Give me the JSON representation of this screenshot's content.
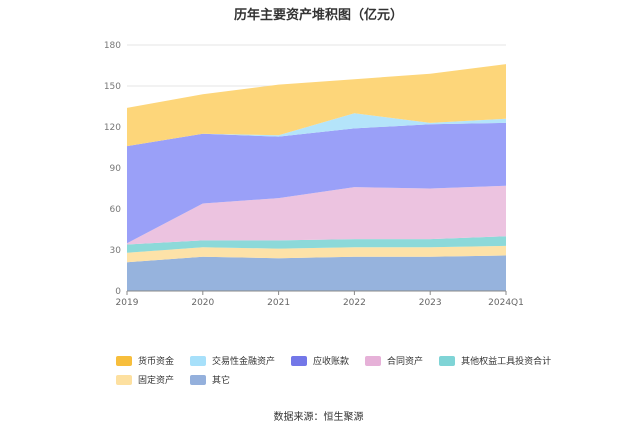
{
  "chart_data": {
    "type": "area",
    "title": "历年主要资产堆积图（亿元）",
    "source": "数据来源：恒生聚源",
    "categories": [
      "2019",
      "2020",
      "2021",
      "2022",
      "2023",
      "2024Q1"
    ],
    "ylim": [
      0,
      180
    ],
    "yticks": [
      "0",
      "30",
      "60",
      "90",
      "120",
      "150",
      "180"
    ],
    "grid": true,
    "legend_position": "bottom",
    "series": [
      {
        "name": "其它",
        "color": "#96b3dd",
        "values": [
          21,
          25,
          24,
          25,
          25,
          26
        ]
      },
      {
        "name": "固定资产",
        "color": "#fde2a8",
        "values": [
          7,
          7,
          7,
          7,
          7,
          7
        ]
      },
      {
        "name": "其他权益工具投资合计",
        "color": "#8cd9d9",
        "values": [
          6,
          5,
          6,
          6,
          6,
          7
        ]
      },
      {
        "name": "合同资产",
        "color": "#ecc3e0",
        "values": [
          1,
          27,
          31,
          38,
          37,
          37
        ]
      },
      {
        "name": "应收账款",
        "color": "#9aa0f8",
        "values": [
          71,
          51,
          45,
          43,
          47,
          46
        ]
      },
      {
        "name": "交易性金融资产",
        "color": "#b4e4fa",
        "values": [
          0,
          0,
          1,
          11,
          1,
          3
        ]
      },
      {
        "name": "货币资金",
        "color": "#fdd67a",
        "values": [
          28,
          29,
          37,
          25,
          36,
          40
        ]
      }
    ]
  },
  "legend": [
    {
      "name": "货币资金",
      "color": "#f7be3c"
    },
    {
      "name": "交易性金融资产",
      "color": "#a7e0fa"
    },
    {
      "name": "应收账款",
      "color": "#7377e8"
    },
    {
      "name": "合同资产",
      "color": "#e6b1d8"
    },
    {
      "name": "其他权益工具投资合计",
      "color": "#7fd4d6"
    },
    {
      "name": "固定资产",
      "color": "#fde0a0"
    },
    {
      "name": "其它",
      "color": "#94b0dc"
    }
  ]
}
